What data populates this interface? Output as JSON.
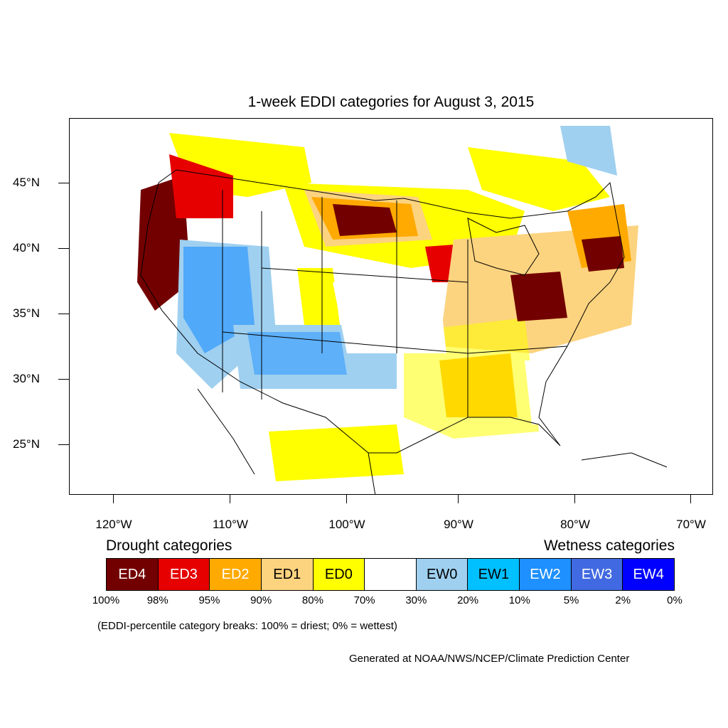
{
  "title": "1-week EDDI categories for August 3, 2015",
  "map": {
    "lat_labels": [
      "45°N",
      "40°N",
      "35°N",
      "30°N",
      "25°N"
    ],
    "lon_labels": [
      "120°W",
      "110°W",
      "100°W",
      "90°W",
      "80°W",
      "70°W"
    ]
  },
  "legend": {
    "drought_heading": "Drought categories",
    "wetness_heading": "Wetness categories",
    "categories": [
      {
        "label": "ED4",
        "color": "#730000"
      },
      {
        "label": "ED3",
        "color": "#e60000"
      },
      {
        "label": "ED2",
        "color": "#ffaa00"
      },
      {
        "label": "ED1",
        "color": "#fcd37f"
      },
      {
        "label": "ED0",
        "color": "#ffff00"
      },
      {
        "label": "",
        "color": "#ffffff"
      },
      {
        "label": "EW0",
        "color": "#9fd0f0"
      },
      {
        "label": "EW1",
        "color": "#00c0ff"
      },
      {
        "label": "EW2",
        "color": "#1e90ff"
      },
      {
        "label": "EW3",
        "color": "#4169e1"
      },
      {
        "label": "EW4",
        "color": "#0000ff"
      }
    ],
    "breaks": [
      "100%",
      "98%",
      "95%",
      "90%",
      "80%",
      "70%",
      "30%",
      "20%",
      "10%",
      "5%",
      "2%",
      "0%"
    ],
    "note": "(EDDI-percentile category breaks: 100% = driest; 0% = wettest)"
  },
  "credit": "Generated at NOAA/NWS/NCEP/Climate Prediction Center"
}
